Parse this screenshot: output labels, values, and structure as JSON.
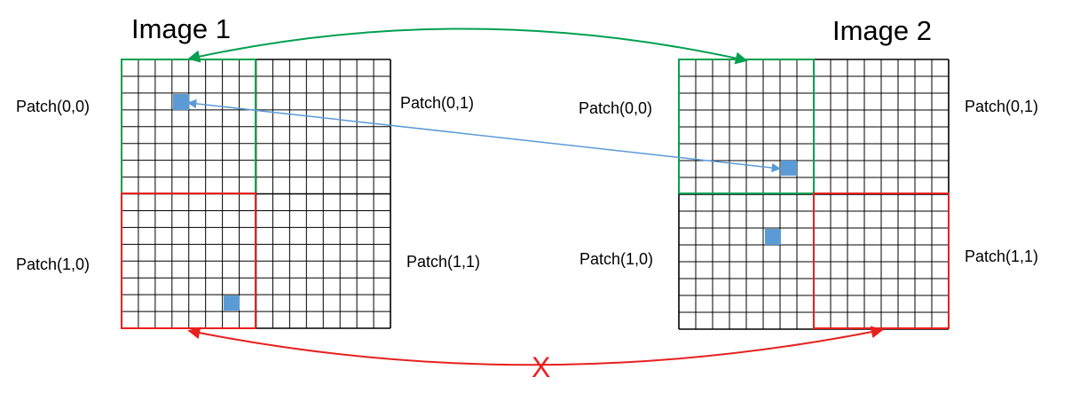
{
  "images": [
    {
      "title": "Image 1",
      "patch_labels": [
        "Patch(0,0)",
        "Patch(0,1)",
        "Patch(1,0)",
        "Patch(1,1)"
      ]
    },
    {
      "title": "Image 2",
      "patch_labels": [
        "Patch(0,0)",
        "Patch(0,1)",
        "Patch(1,0)",
        "Patch(1,1)"
      ]
    }
  ],
  "mismatch_mark": "X",
  "colors": {
    "grid": "#000000",
    "match": "#00a050",
    "mismatch": "#e8201e",
    "pixel": "#5b9bd5",
    "pixel_link": "#5b9bd5"
  }
}
